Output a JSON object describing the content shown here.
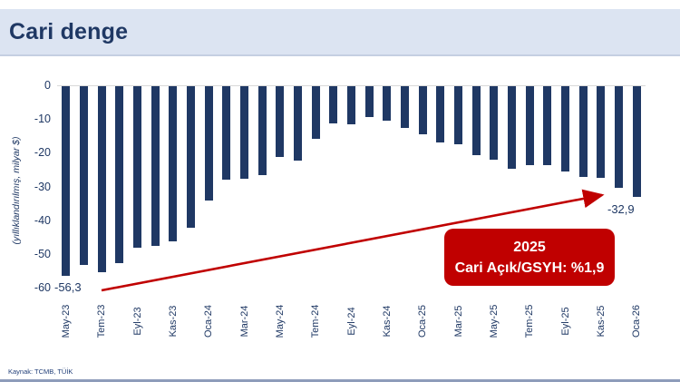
{
  "header": {
    "title": "Cari denge"
  },
  "colors": {
    "navy": "#1f3864",
    "accent_red": "#c00000",
    "header_bg": "#dce4f2",
    "bar": "#1f3864"
  },
  "chart_data": {
    "type": "bar",
    "title": "Cari denge",
    "xlabel": "",
    "ylabel": "(yıllıklandırılmış, milyar $)",
    "ylim": [
      -60,
      0
    ],
    "grid": false,
    "legend": "none",
    "yticks": [
      0,
      -10,
      -20,
      -30,
      -40,
      -50,
      -60
    ],
    "categories": [
      "May-23",
      "Haz-23",
      "Tem-23",
      "Ağu-23",
      "Eyl-23",
      "Eki-23",
      "Kas-23",
      "Ara-23",
      "Oca-24",
      "Şub-24",
      "Mar-24",
      "Nis-24",
      "May-24",
      "Haz-24",
      "Tem-24",
      "Ağu-24",
      "Eyl-24",
      "Eki-24",
      "Kas-24",
      "Ara-24",
      "Oca-25",
      "Şub-25",
      "Mar-25",
      "Nis-25",
      "May-25",
      "Haz-25",
      "Tem-25",
      "Ağu-25",
      "Eyl-25",
      "Eki-25",
      "Kas-25",
      "Ara-25",
      "Oca-26"
    ],
    "x_tick_labels": [
      "May-23",
      "Tem-23",
      "Eyl-23",
      "Kas-23",
      "Oca-24",
      "Mar-24",
      "May-24",
      "Tem-24",
      "Eyl-24",
      "Kas-24",
      "Oca-25",
      "Mar-25",
      "May-25",
      "Tem-25",
      "Eyl-25",
      "Kas-25",
      "Oca-26"
    ],
    "label_every_n": 2,
    "values": [
      -56.3,
      -53.0,
      -55.1,
      -52.6,
      -47.9,
      -47.4,
      -46.1,
      -41.9,
      -33.9,
      -27.6,
      -27.4,
      -26.5,
      -21.0,
      -22.1,
      -15.6,
      -11.0,
      -11.3,
      -9.1,
      -10.2,
      -12.4,
      -14.3,
      -16.6,
      -17.3,
      -20.4,
      -21.8,
      -24.5,
      -23.4,
      -23.4,
      -25.2,
      -26.8,
      -27.2,
      -30.2,
      -32.9
    ],
    "annotations": {
      "first_bar_label": "-56,3",
      "last_bar_label": "-32,9",
      "callout": {
        "line1": "2025",
        "line2": "Cari Açık/GSYH: %1,9"
      }
    }
  },
  "footer": {
    "source": "Kaynak: TCMB, TÜİK"
  }
}
